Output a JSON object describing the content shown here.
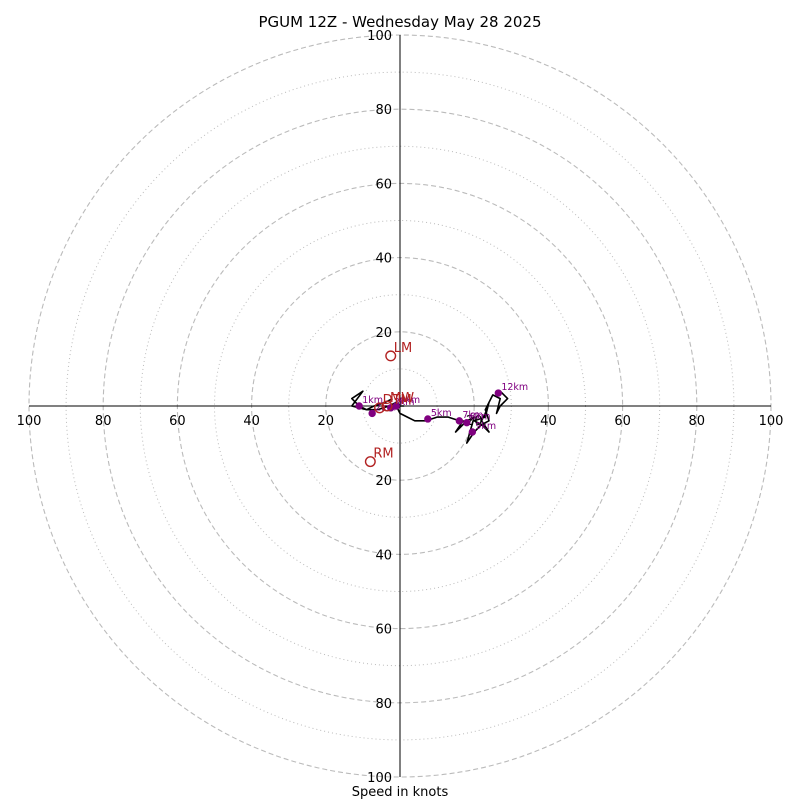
{
  "chart_data": {
    "type": "hodograph",
    "title": "PGUM 12Z - Wednesday May 28 2025",
    "xlabel": "Speed in knots",
    "range_max": 100,
    "ring_major": [
      20,
      40,
      60,
      80,
      100
    ],
    "ring_minor": [
      10,
      30,
      50,
      70,
      90
    ],
    "tick_labels": {
      "top": [
        "20",
        "40",
        "60",
        "80",
        "100"
      ],
      "bottom": [
        "20",
        "40",
        "60",
        "80",
        "100"
      ],
      "left": [
        "20",
        "40",
        "60",
        "80",
        "100"
      ],
      "right": [
        "20",
        "40",
        "60",
        "80",
        "100"
      ]
    },
    "hodograph_trace": [
      [
        -2,
        2
      ],
      [
        -4,
        1
      ],
      [
        -7,
        0
      ],
      [
        -9,
        -1
      ],
      [
        -11,
        0
      ],
      [
        -13,
        2
      ],
      [
        -10,
        4
      ],
      [
        -13,
        0
      ],
      [
        -9,
        -1
      ],
      [
        -6,
        -1
      ],
      [
        -3,
        0
      ],
      [
        -1,
        1
      ],
      [
        0,
        0
      ],
      [
        1,
        0
      ],
      [
        -1,
        0
      ],
      [
        0,
        -2
      ],
      [
        2,
        -3
      ],
      [
        4,
        -4
      ],
      [
        7,
        -4
      ],
      [
        10,
        -3
      ],
      [
        13,
        -3
      ],
      [
        16,
        -4
      ],
      [
        17,
        -4
      ],
      [
        15,
        -7
      ],
      [
        18,
        -4
      ],
      [
        20,
        -3
      ],
      [
        18,
        -10
      ],
      [
        20,
        -7
      ],
      [
        22,
        -5
      ],
      [
        24,
        -7
      ],
      [
        22,
        -4
      ],
      [
        23,
        -2
      ],
      [
        24,
        1
      ],
      [
        23,
        -3
      ],
      [
        20,
        -4
      ],
      [
        22,
        -5
      ],
      [
        24,
        -4
      ],
      [
        23,
        -1
      ],
      [
        25,
        3
      ],
      [
        27,
        2
      ],
      [
        26,
        -2
      ],
      [
        27,
        0
      ],
      [
        29,
        2
      ],
      [
        27,
        4
      ]
    ],
    "heights": [
      {
        "label": "1km",
        "u": -11,
        "v": 0
      },
      {
        "label": "2km",
        "u": -7.5,
        "v": -2
      },
      {
        "label": "3km",
        "u": -2.5,
        "v": -0.5
      },
      {
        "label": "4km",
        "u": -1,
        "v": 0
      },
      {
        "label": "5km",
        "u": 7.5,
        "v": -3.5
      },
      {
        "label": "7km",
        "u": 16,
        "v": -4
      },
      {
        "label": "8km",
        "u": 18,
        "v": -4.5
      },
      {
        "label": "9km",
        "u": 19.5,
        "v": -7
      },
      {
        "label": "12km",
        "u": 26.5,
        "v": 3.5
      }
    ],
    "motion_markers": [
      {
        "label": "LM",
        "u": -2.5,
        "v": 13.5
      },
      {
        "label": "RM",
        "u": -8,
        "v": -15
      },
      {
        "label": "MW",
        "u": -3.5,
        "v": 0
      },
      {
        "label": "DTM",
        "u": -5.5,
        "v": -0.5
      }
    ],
    "colors": {
      "trace": "#000000",
      "heights": "#800080",
      "motion": "#b22222",
      "grid": "#bbbbbb",
      "axis": "#000000"
    }
  }
}
